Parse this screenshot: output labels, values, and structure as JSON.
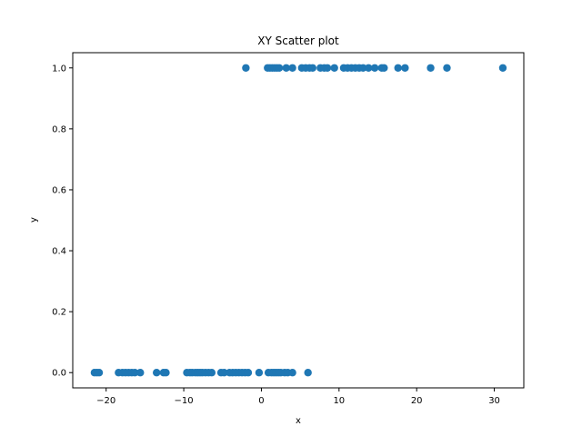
{
  "chart_data": {
    "type": "scatter",
    "title": "XY Scatter plot",
    "xlabel": "x",
    "ylabel": "y",
    "xlim": [
      -24.3,
      33.8
    ],
    "ylim": [
      -0.05,
      1.05
    ],
    "xticks": [
      -20,
      -10,
      0,
      10,
      20,
      30
    ],
    "xtick_labels": [
      "−20",
      "−10",
      "0",
      "10",
      "20",
      "30"
    ],
    "yticks": [
      0.0,
      0.2,
      0.4,
      0.6,
      0.8,
      1.0
    ],
    "ytick_labels": [
      "0.0",
      "0.2",
      "0.4",
      "0.6",
      "0.8",
      "1.0"
    ],
    "grid": false,
    "marker_color": "#1f77b4",
    "series": [
      {
        "points": [
          [
            -21.5,
            0
          ],
          [
            -21.2,
            0
          ],
          [
            -20.9,
            0
          ],
          [
            -18.4,
            0
          ],
          [
            -17.9,
            0
          ],
          [
            -17.5,
            0
          ],
          [
            -17.1,
            0
          ],
          [
            -16.7,
            0
          ],
          [
            -16.3,
            0
          ],
          [
            -15.6,
            0
          ],
          [
            -13.5,
            0
          ],
          [
            -12.6,
            0
          ],
          [
            -12.3,
            0
          ],
          [
            -9.6,
            0
          ],
          [
            -9.2,
            0
          ],
          [
            -8.9,
            0
          ],
          [
            -8.5,
            0
          ],
          [
            -8.2,
            0
          ],
          [
            -7.9,
            0
          ],
          [
            -7.6,
            0
          ],
          [
            -7.2,
            0
          ],
          [
            -6.8,
            0
          ],
          [
            -6.4,
            0
          ],
          [
            -5.2,
            0
          ],
          [
            -4.8,
            0
          ],
          [
            -4.1,
            0
          ],
          [
            -3.7,
            0
          ],
          [
            -3.3,
            0
          ],
          [
            -2.9,
            0
          ],
          [
            -2.5,
            0
          ],
          [
            -2.1,
            0
          ],
          [
            -1.7,
            0
          ],
          [
            -0.3,
            0
          ],
          [
            0.9,
            0
          ],
          [
            1.3,
            0
          ],
          [
            1.6,
            0
          ],
          [
            1.9,
            0
          ],
          [
            2.2,
            0
          ],
          [
            2.5,
            0
          ],
          [
            3.0,
            0
          ],
          [
            3.4,
            0
          ],
          [
            4.0,
            0
          ],
          [
            6.0,
            0
          ],
          [
            -2.0,
            1
          ],
          [
            0.8,
            1
          ],
          [
            1.1,
            1
          ],
          [
            1.4,
            1
          ],
          [
            1.7,
            1
          ],
          [
            2.0,
            1
          ],
          [
            2.3,
            1
          ],
          [
            3.2,
            1
          ],
          [
            4.0,
            1
          ],
          [
            5.2,
            1
          ],
          [
            5.7,
            1
          ],
          [
            6.2,
            1
          ],
          [
            6.6,
            1
          ],
          [
            7.6,
            1
          ],
          [
            8.1,
            1
          ],
          [
            8.5,
            1
          ],
          [
            9.4,
            1
          ],
          [
            10.6,
            1
          ],
          [
            11.1,
            1
          ],
          [
            11.6,
            1
          ],
          [
            12.1,
            1
          ],
          [
            12.6,
            1
          ],
          [
            13.1,
            1
          ],
          [
            13.8,
            1
          ],
          [
            14.6,
            1
          ],
          [
            15.5,
            1
          ],
          [
            15.8,
            1
          ],
          [
            17.6,
            1
          ],
          [
            18.5,
            1
          ],
          [
            21.8,
            1
          ],
          [
            23.9,
            1
          ],
          [
            31.1,
            1
          ]
        ]
      }
    ]
  }
}
